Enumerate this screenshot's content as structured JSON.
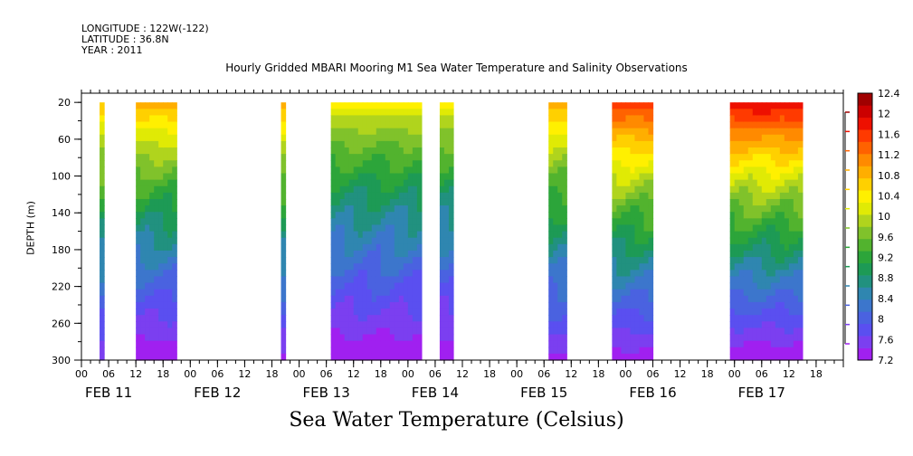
{
  "header": {
    "longitude": "LONGITUDE : 122W(-122)",
    "latitude": "LATITUDE : 36.8N",
    "year": "YEAR : 2011"
  },
  "chart_data": {
    "type": "heatmap",
    "title": "Hourly Gridded MBARI Mooring M1 Sea Water Temperature and Salinity Observations",
    "variable_label": "Sea Water Temperature (Celsius)",
    "ylabel": "DEPTH (m)",
    "ylim": [
      300,
      10
    ],
    "y_ticks": [
      "20",
      "60",
      "100",
      "140",
      "180",
      "220",
      "260",
      "300"
    ],
    "x_range_hours": [
      0,
      168
    ],
    "x_hour_ticks": [
      "00",
      "06",
      "12",
      "18"
    ],
    "day_labels": [
      "FEB 11",
      "FEB 12",
      "FEB 13",
      "FEB 14",
      "FEB 15",
      "FEB 16",
      "FEB 17"
    ],
    "colorbar": {
      "levels": [
        "7.2",
        "7.6",
        "8",
        "8.4",
        "8.8",
        "9.2",
        "9.6",
        "10",
        "10.4",
        "10.8",
        "11.2",
        "11.6",
        "12",
        "12.4"
      ],
      "colors": [
        "#a020f0",
        "#7b3ff0",
        "#5a4ff0",
        "#4a62e0",
        "#3c76cc",
        "#2f86b0",
        "#21917f",
        "#1d9a55",
        "#2ca53a",
        "#52b32e",
        "#80c22b",
        "#b0d41d",
        "#e0ea05",
        "#fff000",
        "#ffd000",
        "#ffae00",
        "#ff8a00",
        "#ff6200",
        "#ff3a00",
        "#ee1000",
        "#cc0000",
        "#a00000"
      ]
    },
    "data_blocks": [
      {
        "start_hour": 4,
        "end_hour": 5,
        "surface_temp": 10.8,
        "bottom_temp": 7.5
      },
      {
        "start_hour": 12,
        "end_hour": 21,
        "surface_temp": 11.0,
        "bottom_temp": 7.2
      },
      {
        "start_hour": 44,
        "end_hour": 45,
        "surface_temp": 11.0,
        "bottom_temp": 7.4
      },
      {
        "start_hour": 55,
        "end_hour": 75,
        "surface_temp": 10.4,
        "bottom_temp": 7.2
      },
      {
        "start_hour": 79,
        "end_hour": 82,
        "surface_temp": 10.4,
        "bottom_temp": 7.2
      },
      {
        "start_hour": 103,
        "end_hour": 107,
        "surface_temp": 11.0,
        "bottom_temp": 7.4
      },
      {
        "start_hour": 117,
        "end_hour": 126,
        "surface_temp": 11.8,
        "bottom_temp": 7.3
      },
      {
        "start_hour": 143,
        "end_hour": 159,
        "surface_temp": 12.1,
        "bottom_temp": 7.2
      }
    ]
  }
}
